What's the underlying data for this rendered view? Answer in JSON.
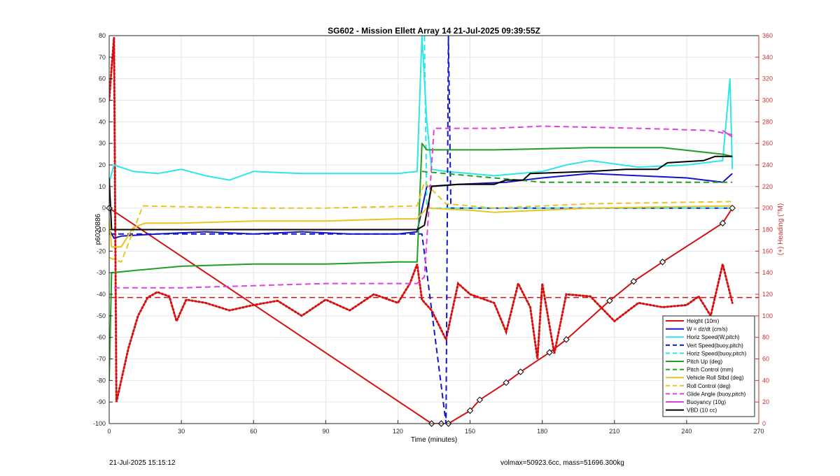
{
  "chart_data": {
    "type": "line",
    "title": "SG602 - Mission Ellett Array 14 21-Jul-2025 09:39:55Z",
    "xlabel": "Time (minutes)",
    "ylabel_left": "p6020886",
    "ylabel_right": "(+) Heading (°M)",
    "xlim": [
      0,
      270
    ],
    "ylim_left": [
      -100,
      80
    ],
    "ylim_right": [
      0,
      360
    ],
    "xticks": [
      "0",
      "30",
      "60",
      "90",
      "120",
      "150",
      "180",
      "210",
      "240",
      "270"
    ],
    "yticks_left": [
      "80",
      "70",
      "60",
      "50",
      "40",
      "30",
      "20",
      "10",
      "0",
      "-10",
      "-20",
      "-30",
      "-40",
      "-50",
      "-60",
      "-70",
      "-80",
      "-90",
      "-100"
    ],
    "yticks_right": [
      "360",
      "340",
      "320",
      "300",
      "280",
      "260",
      "240",
      "220",
      "200",
      "180",
      "160",
      "140",
      "120",
      "100",
      "80",
      "60",
      "40",
      "20",
      "0"
    ],
    "grid": true,
    "legend_position": "bottom-right",
    "colors": {
      "red": "#d51010",
      "blue": "#1515c8",
      "cyan": "#2ee6e6",
      "green": "#22a022",
      "yellow": "#e8c520",
      "magenta": "#e040e0",
      "black": "#000000",
      "heading_axis": "#c83232"
    },
    "series": [
      {
        "name": "Height (10m)",
        "color": "#d51010",
        "style": "solid",
        "points": [
          [
            0,
            0
          ],
          [
            134,
            -100
          ],
          [
            138,
            -100
          ],
          [
            141,
            -100
          ],
          [
            150,
            -94
          ],
          [
            154,
            -89
          ],
          [
            165,
            -81
          ],
          [
            171,
            -76
          ],
          [
            183,
            -67
          ],
          [
            190,
            -61
          ],
          [
            208,
            -43
          ],
          [
            218,
            -34
          ],
          [
            230,
            -25
          ],
          [
            255,
            -7
          ],
          [
            259,
            0
          ]
        ]
      },
      {
        "name": "W = dz/dt (cm/s)",
        "color": "#1515c8",
        "style": "solid",
        "points": [
          [
            0,
            -10
          ],
          [
            2,
            -14
          ],
          [
            5,
            -13
          ],
          [
            20,
            -12
          ],
          [
            40,
            -11
          ],
          [
            60,
            -12
          ],
          [
            80,
            -11
          ],
          [
            100,
            -12
          ],
          [
            120,
            -12
          ],
          [
            128,
            -11
          ],
          [
            132,
            10
          ],
          [
            145,
            11
          ],
          [
            165,
            12
          ],
          [
            180,
            14
          ],
          [
            200,
            16
          ],
          [
            220,
            15
          ],
          [
            240,
            14
          ],
          [
            255,
            12
          ],
          [
            259,
            16
          ]
        ]
      },
      {
        "name": "Horiz Speed(W,pitch)",
        "color": "#2ee6e6",
        "style": "solid",
        "points": [
          [
            0,
            12
          ],
          [
            2,
            20
          ],
          [
            10,
            17
          ],
          [
            20,
            16
          ],
          [
            30,
            18
          ],
          [
            40,
            15
          ],
          [
            50,
            13
          ],
          [
            60,
            17
          ],
          [
            80,
            16
          ],
          [
            100,
            16
          ],
          [
            120,
            16
          ],
          [
            128,
            17
          ],
          [
            130,
            80
          ],
          [
            132,
            40
          ],
          [
            134,
            18
          ],
          [
            140,
            17
          ],
          [
            160,
            15
          ],
          [
            180,
            17
          ],
          [
            190,
            20
          ],
          [
            200,
            22
          ],
          [
            220,
            19
          ],
          [
            240,
            20
          ],
          [
            255,
            22
          ],
          [
            258,
            60
          ],
          [
            259,
            18
          ]
        ]
      },
      {
        "name": "Vert Speed(buoy,pitch)",
        "color": "#1515c8",
        "style": "dashed",
        "points": [
          [
            0,
            -12
          ],
          [
            20,
            -12
          ],
          [
            60,
            -12
          ],
          [
            100,
            -12
          ],
          [
            130,
            -12
          ],
          [
            140,
            -100
          ],
          [
            141,
            80
          ],
          [
            142,
            0
          ],
          [
            170,
            0
          ],
          [
            200,
            0
          ],
          [
            259,
            0
          ]
        ]
      },
      {
        "name": "Horiz Speed(buoy,pitch)",
        "color": "#2ee6e6",
        "style": "dashed",
        "points": [
          [
            131,
            80
          ],
          [
            132,
            0
          ],
          [
            160,
            0
          ],
          [
            200,
            0
          ],
          [
            259,
            0
          ]
        ]
      },
      {
        "name": "Pitch Up (deg)",
        "color": "#22a022",
        "style": "solid",
        "points": [
          [
            0,
            -80
          ],
          [
            1,
            -30
          ],
          [
            10,
            -29
          ],
          [
            30,
            -27
          ],
          [
            60,
            -26
          ],
          [
            90,
            -26
          ],
          [
            120,
            -25
          ],
          [
            128,
            -25
          ],
          [
            130,
            30
          ],
          [
            132,
            27
          ],
          [
            160,
            27
          ],
          [
            200,
            28
          ],
          [
            230,
            28
          ],
          [
            255,
            25
          ],
          [
            259,
            24
          ]
        ]
      },
      {
        "name": "Pitch Control (mm)",
        "color": "#22a022",
        "style": "dashed",
        "points": [
          [
            130,
            17
          ],
          [
            180,
            12
          ],
          [
            200,
            12
          ],
          [
            259,
            12
          ]
        ]
      },
      {
        "name": "Vehicle Roll Stbd (deg)",
        "color": "#e8c520",
        "style": "solid",
        "points": [
          [
            0,
            -5
          ],
          [
            1,
            -18
          ],
          [
            5,
            -18
          ],
          [
            10,
            -9
          ],
          [
            15,
            -7
          ],
          [
            30,
            -7
          ],
          [
            60,
            -6
          ],
          [
            90,
            -6
          ],
          [
            120,
            -5
          ],
          [
            128,
            -5
          ],
          [
            132,
            0
          ],
          [
            150,
            -1
          ],
          [
            160,
            -2
          ],
          [
            200,
            0
          ],
          [
            259,
            1
          ]
        ]
      },
      {
        "name": "Roll Control (deg)",
        "color": "#e8c520",
        "style": "dashed",
        "points": [
          [
            0,
            -23
          ],
          [
            5,
            -25
          ],
          [
            14,
            1
          ],
          [
            60,
            0
          ],
          [
            90,
            0
          ],
          [
            128,
            1
          ],
          [
            131,
            12
          ],
          [
            140,
            2
          ],
          [
            160,
            0
          ],
          [
            200,
            2
          ],
          [
            259,
            3
          ]
        ]
      },
      {
        "name": "Glide Angle (buoy,pitch)",
        "color": "#e040e0",
        "style": "dashed",
        "points": [
          [
            2,
            -37
          ],
          [
            30,
            -37
          ],
          [
            60,
            -36
          ],
          [
            90,
            -35
          ],
          [
            128,
            -35
          ],
          [
            131,
            -32
          ],
          [
            135,
            37
          ],
          [
            160,
            37
          ],
          [
            180,
            38
          ],
          [
            220,
            37
          ],
          [
            250,
            36
          ],
          [
            259,
            34
          ]
        ]
      },
      {
        "name": "Buoyancy (10g)",
        "color": "#e040e0",
        "style": "solid",
        "points": [
          [
            255,
            36
          ],
          [
            259,
            33
          ]
        ]
      },
      {
        "name": "VBD (10 cc)",
        "color": "#000000",
        "style": "solid",
        "points": [
          [
            0,
            14
          ],
          [
            1,
            -10
          ],
          [
            20,
            -10
          ],
          [
            60,
            -10
          ],
          [
            90,
            -10
          ],
          [
            128,
            -10
          ],
          [
            131,
            -8
          ],
          [
            134,
            10
          ],
          [
            145,
            11
          ],
          [
            160,
            11
          ],
          [
            165,
            13
          ],
          [
            172,
            13
          ],
          [
            175,
            16
          ],
          [
            200,
            17
          ],
          [
            215,
            18
          ],
          [
            228,
            18
          ],
          [
            232,
            21
          ],
          [
            247,
            22
          ],
          [
            252,
            24
          ],
          [
            259,
            24
          ]
        ]
      }
    ],
    "heading": {
      "axis": "right",
      "color": "#d51010",
      "style": "dotted",
      "points": [
        [
          0,
          300
        ],
        [
          1,
          330
        ],
        [
          2,
          358
        ],
        [
          3,
          20
        ],
        [
          5,
          40
        ],
        [
          8,
          70
        ],
        [
          12,
          100
        ],
        [
          16,
          117
        ],
        [
          20,
          122
        ],
        [
          25,
          118
        ],
        [
          28,
          95
        ],
        [
          32,
          115
        ],
        [
          40,
          112
        ],
        [
          50,
          105
        ],
        [
          60,
          110
        ],
        [
          70,
          114
        ],
        [
          80,
          100
        ],
        [
          90,
          115
        ],
        [
          100,
          105
        ],
        [
          110,
          120
        ],
        [
          120,
          112
        ],
        [
          125,
          130
        ],
        [
          128,
          148
        ],
        [
          130,
          115
        ],
        [
          134,
          105
        ],
        [
          140,
          78
        ],
        [
          145,
          130
        ],
        [
          150,
          120
        ],
        [
          160,
          112
        ],
        [
          165,
          85
        ],
        [
          170,
          130
        ],
        [
          175,
          108
        ],
        [
          178,
          60
        ],
        [
          180,
          130
        ],
        [
          185,
          65
        ],
        [
          190,
          120
        ],
        [
          200,
          118
        ],
        [
          210,
          95
        ],
        [
          220,
          112
        ],
        [
          230,
          108
        ],
        [
          240,
          110
        ],
        [
          245,
          118
        ],
        [
          250,
          100
        ],
        [
          255,
          148
        ],
        [
          259,
          112
        ]
      ]
    },
    "heading_reference": {
      "color": "#d51010",
      "style": "dashed",
      "value": 117
    }
  },
  "footer": {
    "left": "21-Jul-2025 15:15:12",
    "right": "volmax=50923.6cc, mass=51696.300kg"
  }
}
